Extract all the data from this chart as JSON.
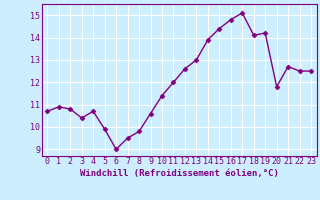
{
  "x": [
    0,
    1,
    2,
    3,
    4,
    5,
    6,
    7,
    8,
    9,
    10,
    11,
    12,
    13,
    14,
    15,
    16,
    17,
    18,
    19,
    20,
    21,
    22,
    23
  ],
  "y": [
    10.7,
    10.9,
    10.8,
    10.4,
    10.7,
    9.9,
    9.0,
    9.5,
    9.8,
    10.6,
    11.4,
    12.0,
    12.6,
    13.0,
    13.9,
    14.4,
    14.8,
    15.1,
    14.1,
    14.2,
    11.8,
    12.7,
    12.5,
    12.5
  ],
  "line_color": "#800080",
  "marker": "D",
  "marker_size": 2.5,
  "bg_color": "#cceeff",
  "grid_color": "#ffffff",
  "xlabel": "Windchill (Refroidissement éolien,°C)",
  "xlabel_color": "#800080",
  "tick_color": "#800080",
  "ylim": [
    8.7,
    15.5
  ],
  "xlim": [
    -0.5,
    23.5
  ],
  "yticks": [
    9,
    10,
    11,
    12,
    13,
    14,
    15
  ],
  "xticks": [
    0,
    1,
    2,
    3,
    4,
    5,
    6,
    7,
    8,
    9,
    10,
    11,
    12,
    13,
    14,
    15,
    16,
    17,
    18,
    19,
    20,
    21,
    22,
    23
  ],
  "linewidth": 1.0,
  "label_fontsize": 6.5,
  "tick_fontsize": 6.0
}
